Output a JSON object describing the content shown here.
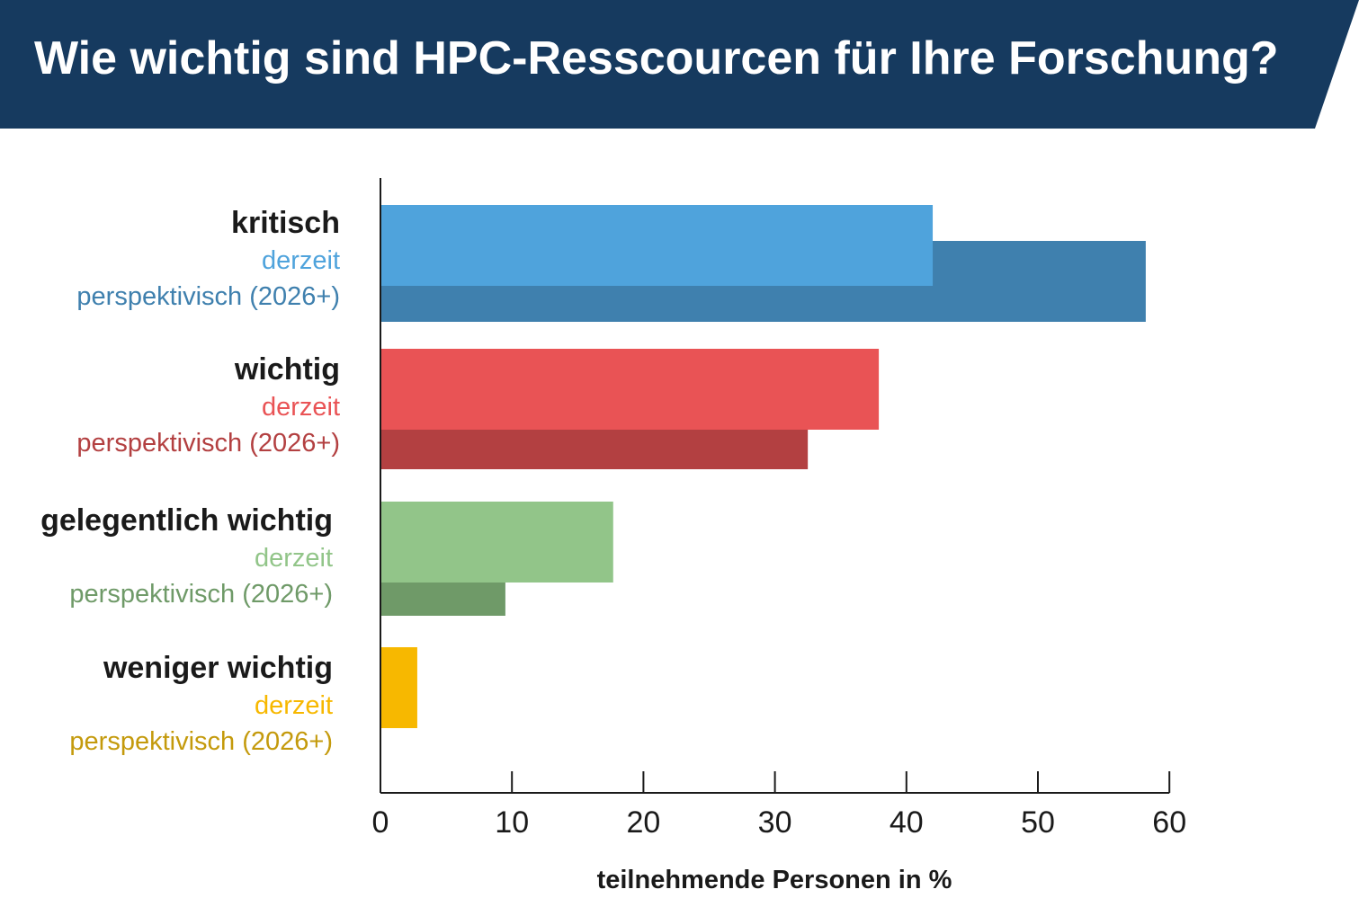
{
  "chart_data": {
    "type": "bar",
    "orientation": "horizontal",
    "title": "Wie wichtig sind HPC-Resscourcen für Ihre Forschung?",
    "xlabel": "teilnehmende Personen in %",
    "xlim": [
      0,
      60
    ],
    "xticks": [
      "0",
      "10",
      "20",
      "30",
      "40",
      "50",
      "60"
    ],
    "grid": false,
    "categories": [
      {
        "label": "kritisch",
        "bars": [
          {
            "name": "derzeit",
            "value": 42.0,
            "color": "#4fa3dc"
          },
          {
            "name": "perspektivisch (2026+)",
            "value": 58.2,
            "color": "#3f80ae"
          }
        ],
        "label_colors": [
          "#4fa3dc",
          "#3f80ae"
        ]
      },
      {
        "label": "wichtig",
        "bars": [
          {
            "name": "derzeit",
            "value": 37.9,
            "color": "#e95355"
          },
          {
            "name": "perspektivisch (2026+)",
            "value": 32.5,
            "color": "#b34041"
          }
        ],
        "label_colors": [
          "#e95355",
          "#b34041"
        ]
      },
      {
        "label": "gelegentlich wichtig",
        "bars": [
          {
            "name": "derzeit",
            "value": 17.7,
            "color": "#92c589"
          },
          {
            "name": "perspektivisch (2026+)",
            "value": 9.5,
            "color": "#6f9a68"
          }
        ],
        "label_colors": [
          "#92c589",
          "#6f9a68"
        ]
      },
      {
        "label": "weniger wichtig",
        "bars": [
          {
            "name": "derzeit",
            "value": 2.8,
            "color": "#f7b800"
          },
          {
            "name": "perspektivisch (2026+)",
            "value": 0,
            "color": "#c49a0c"
          }
        ],
        "label_colors": [
          "#f7b800",
          "#c49a0c"
        ]
      }
    ]
  },
  "colors": {
    "banner": "#163a5f",
    "axis": "#1a1a1a"
  }
}
